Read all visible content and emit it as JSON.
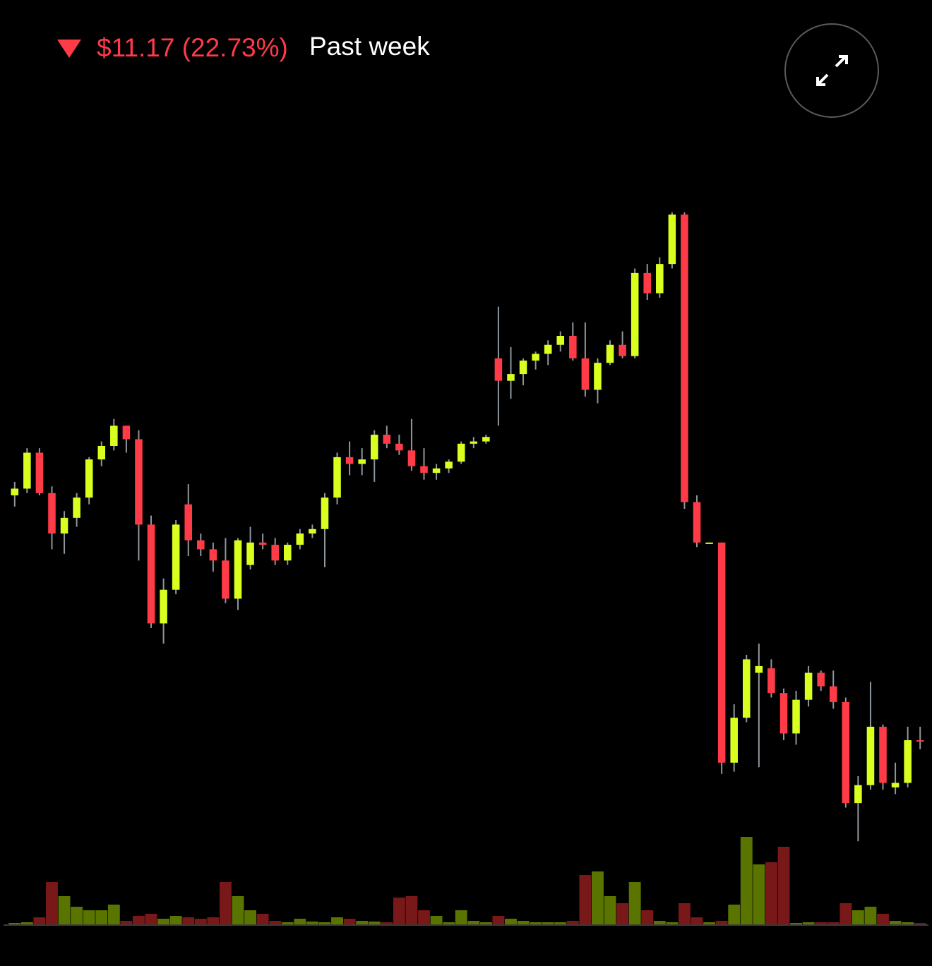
{
  "header": {
    "change_label": "$11.17 (22.73%)",
    "period": "Past week"
  },
  "chart_data": {
    "type": "candlestick",
    "up_color": "#d9ff1f",
    "down_color": "#ff3b47",
    "wick_color": "#8e979e",
    "volume_up_color": "#5a7400",
    "volume_down_color": "#781818",
    "ylim": [
      32,
      62
    ],
    "volume_ylim": [
      0,
      130
    ],
    "open": [
      48.9,
      49.2,
      50.8,
      49.0,
      47.2,
      47.9,
      48.8,
      50.5,
      51.1,
      52.0,
      51.4,
      47.6,
      43.2,
      44.7,
      48.5,
      46.9,
      46.5,
      46.0,
      44.3,
      45.8,
      46.8,
      46.7,
      46.0,
      46.7,
      47.2,
      47.4,
      48.8,
      50.6,
      50.3,
      50.5,
      51.6,
      51.2,
      50.9,
      50.2,
      49.9,
      50.1,
      50.4,
      51.2,
      51.3,
      55.0,
      54.0,
      54.3,
      54.9,
      55.2,
      55.6,
      56.0,
      55.0,
      53.6,
      54.8,
      55.6,
      55.1,
      58.8,
      57.9,
      59.2,
      61.4,
      48.6,
      46.8,
      46.8,
      37.0,
      39.0,
      41.0,
      41.2,
      40.1,
      38.3,
      39.8,
      41.0,
      40.4,
      39.7,
      35.2,
      36.0,
      38.6,
      35.9,
      36.1,
      38.0
    ],
    "high": [
      49.5,
      51.0,
      51.0,
      49.3,
      48.2,
      49.0,
      50.6,
      51.3,
      52.3,
      52.0,
      51.8,
      48.0,
      45.2,
      47.8,
      49.4,
      47.2,
      46.8,
      47.0,
      47.0,
      47.5,
      47.2,
      47.0,
      46.8,
      47.4,
      47.6,
      49.0,
      50.8,
      51.3,
      51.0,
      51.8,
      52.0,
      51.6,
      52.3,
      51.0,
      50.3,
      50.5,
      51.3,
      51.5,
      51.6,
      57.3,
      55.5,
      55.0,
      55.3,
      55.8,
      56.2,
      56.6,
      56.6,
      55.0,
      55.8,
      56.2,
      59.0,
      59.2,
      59.5,
      61.5,
      61.5,
      48.9,
      46.8,
      46.8,
      39.6,
      41.8,
      42.3,
      41.6,
      40.3,
      40.2,
      41.3,
      41.1,
      41.1,
      39.9,
      36.4,
      40.6,
      38.7,
      37.0,
      38.6,
      38.6
    ],
    "low": [
      48.4,
      49.0,
      48.9,
      46.5,
      46.3,
      47.5,
      48.5,
      50.2,
      50.9,
      50.8,
      46.0,
      43.0,
      42.3,
      44.5,
      46.2,
      46.2,
      45.5,
      44.1,
      43.8,
      45.6,
      46.5,
      45.8,
      45.8,
      46.5,
      47.0,
      45.7,
      48.5,
      49.8,
      49.8,
      49.5,
      51.0,
      50.7,
      50.0,
      49.6,
      49.6,
      49.9,
      50.3,
      51.0,
      51.2,
      52.0,
      53.2,
      53.8,
      54.5,
      54.7,
      55.3,
      54.9,
      53.3,
      53.0,
      54.7,
      55.0,
      55.0,
      57.6,
      57.7,
      59.0,
      48.3,
      46.6,
      46.8,
      36.5,
      36.6,
      38.8,
      36.8,
      39.9,
      38.0,
      37.8,
      39.5,
      40.2,
      39.4,
      35.0,
      33.5,
      35.8,
      35.8,
      35.6,
      35.9,
      37.6
    ],
    "close": [
      49.2,
      50.8,
      49.0,
      47.2,
      47.9,
      48.8,
      50.5,
      51.1,
      52.0,
      51.4,
      47.6,
      43.2,
      44.7,
      47.6,
      46.9,
      46.5,
      46.0,
      44.3,
      46.9,
      46.8,
      46.7,
      46.0,
      46.7,
      47.2,
      47.4,
      48.8,
      50.6,
      50.3,
      50.5,
      51.6,
      51.2,
      50.9,
      50.2,
      49.9,
      50.1,
      50.4,
      51.2,
      51.3,
      51.5,
      54.0,
      54.3,
      54.9,
      55.2,
      55.6,
      56.0,
      55.0,
      53.6,
      54.8,
      55.6,
      55.1,
      58.8,
      57.9,
      59.2,
      61.4,
      48.6,
      46.8,
      46.8,
      37.0,
      39.0,
      41.6,
      41.3,
      40.1,
      38.3,
      39.8,
      41.0,
      40.4,
      39.7,
      35.2,
      36.0,
      38.6,
      36.1,
      36.1,
      38.0,
      37.97
    ],
    "volume": [
      2,
      3,
      10,
      60,
      40,
      25,
      20,
      20,
      28,
      5,
      12,
      15,
      8,
      12,
      10,
      8,
      10,
      60,
      40,
      20,
      15,
      5,
      3,
      8,
      4,
      3,
      10,
      8,
      5,
      4,
      3,
      38,
      40,
      20,
      12,
      3,
      20,
      5,
      3,
      12,
      8,
      5,
      3,
      3,
      3,
      5,
      70,
      75,
      40,
      30,
      60,
      20,
      5,
      3,
      30,
      10,
      3,
      5,
      28,
      124,
      85,
      88,
      110,
      2,
      3,
      3,
      3,
      30,
      20,
      25,
      15,
      5,
      3,
      2
    ]
  }
}
